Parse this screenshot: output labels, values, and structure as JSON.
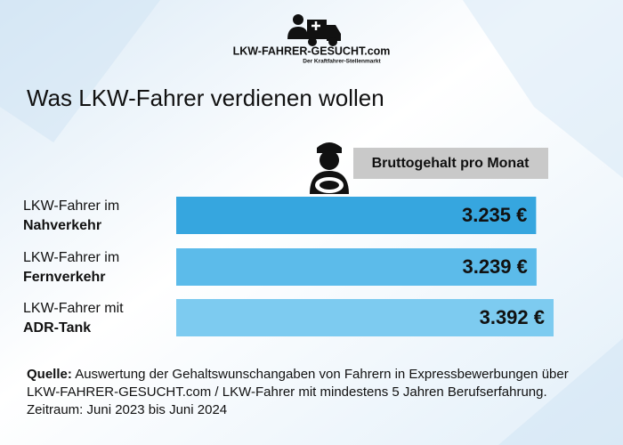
{
  "chart_data": {
    "type": "bar",
    "brand": "LKW-FAHRER-GESUCHT.com",
    "brand_tagline": "Der Kraftfahrer-Stellenmarkt",
    "title": "Was LKW-Fahrer verdienen wollen",
    "series_label": "Bruttogehalt pro Monat",
    "categories": [
      [
        "LKW-Fahrer im",
        "Nahverkehr"
      ],
      [
        "LKW-Fahrer im",
        "Fernverkehr"
      ],
      [
        "LKW-Fahrer mit",
        "ADR-Tank"
      ]
    ],
    "values": [
      3235,
      3239,
      3392
    ],
    "value_labels": [
      "3.235 €",
      "3.239 €",
      "3.392 €"
    ],
    "colors": [
      "#36a6df",
      "#5cbbea",
      "#7dcbf0"
    ],
    "source": {
      "label": "Quelle:",
      "lines": [
        "Auswertung der Gehaltswunschangaben von Fahrern in Expressbewerbungen über",
        "LKW-FAHRER-GESUCHT.com / LKW-Fahrer mit mindestens 5 Jahren Berufserfahrung.",
        "Zeitraum: Juni 2023 bis Juni 2024"
      ]
    }
  }
}
